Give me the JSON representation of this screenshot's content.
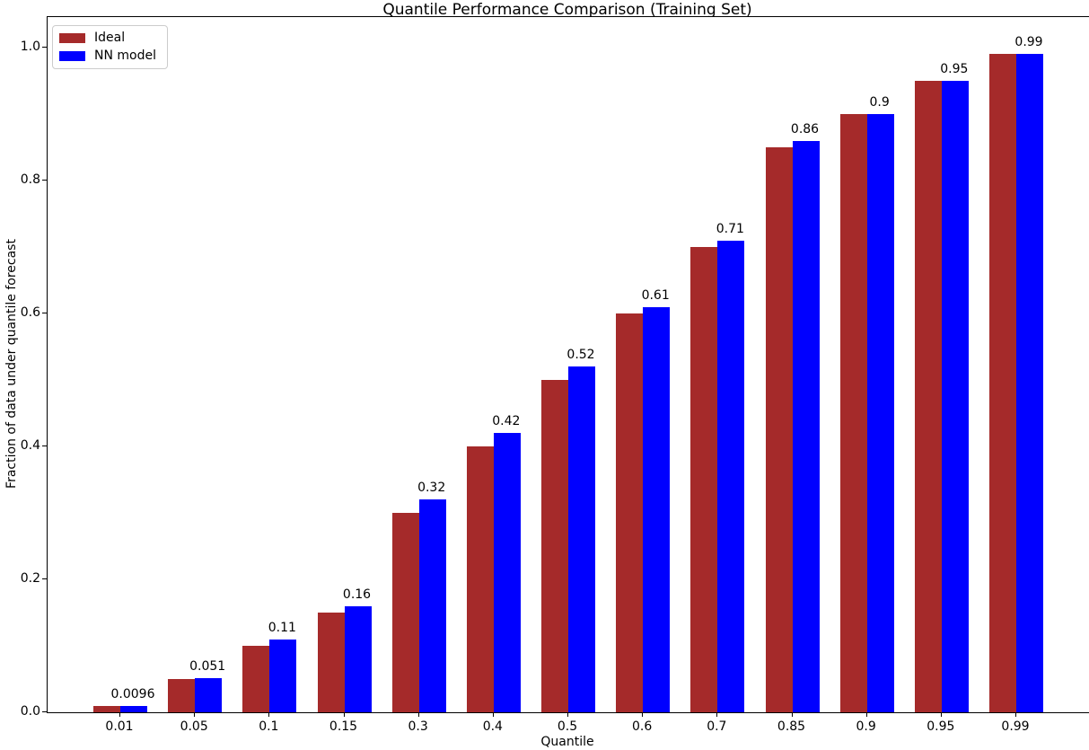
{
  "chart_data": {
    "type": "bar",
    "title": "Quantile Performance Comparison (Training Set)",
    "xlabel": "Quantile",
    "ylabel": "Fraction of data under quantile forecast",
    "categories": [
      "0.01",
      "0.05",
      "0.1",
      "0.15",
      "0.3",
      "0.4",
      "0.5",
      "0.6",
      "0.7",
      "0.85",
      "0.9",
      "0.95",
      "0.99"
    ],
    "series": [
      {
        "name": "Ideal",
        "color": "#A52A2A",
        "values": [
          0.01,
          0.05,
          0.1,
          0.15,
          0.3,
          0.4,
          0.5,
          0.6,
          0.7,
          0.85,
          0.9,
          0.95,
          0.99
        ]
      },
      {
        "name": "NN model",
        "color": "#0000FF",
        "values": [
          0.0096,
          0.051,
          0.11,
          0.16,
          0.32,
          0.42,
          0.52,
          0.61,
          0.71,
          0.86,
          0.9,
          0.95,
          0.99
        ],
        "bar_labels": [
          "0.0096",
          "0.051",
          "0.11",
          "0.16",
          "0.32",
          "0.42",
          "0.52",
          "0.61",
          "0.71",
          "0.86",
          "0.9",
          "0.95",
          "0.99"
        ]
      }
    ],
    "yticks": [
      "0.0",
      "0.2",
      "0.4",
      "0.6",
      "0.8",
      "1.0"
    ],
    "ylim": [
      0,
      1.046
    ],
    "grid": false,
    "legend_position": "upper left",
    "axis_color": "#000000",
    "background_color": "#ffffff"
  }
}
